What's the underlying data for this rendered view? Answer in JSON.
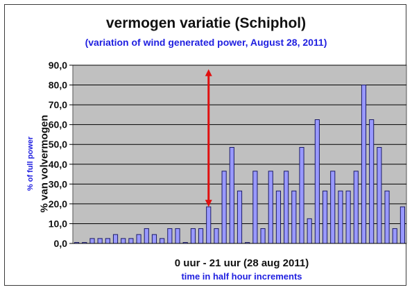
{
  "chart_data": {
    "type": "bar",
    "title": "vermogen variatie (Schiphol)",
    "subtitle": "(variation of wind generated power, August 28, 2011)",
    "ylabel": "% van volvermogen",
    "ylabel_secondary": "% of full power",
    "xlabel": "0 uur - 21 uur (28 aug 2011)",
    "xlabel_secondary": "time in half hour increments",
    "ylim": [
      0,
      90
    ],
    "yticks": [
      "0,0",
      "10,0",
      "20,0",
      "30,0",
      "40,0",
      "50,0",
      "60,0",
      "70,0",
      "80,0",
      "90,0"
    ],
    "grid": true,
    "legend": "none",
    "values": [
      0.5,
      0.5,
      2.5,
      2.5,
      2.5,
      4.5,
      2.5,
      2.5,
      4.5,
      7.5,
      4.5,
      2.5,
      7.5,
      7.5,
      0.5,
      7.5,
      7.5,
      18.5,
      7.5,
      36.5,
      48.5,
      26.5,
      0.5,
      36.5,
      7.5,
      36.5,
      26.5,
      36.5,
      26.5,
      48.5,
      12.5,
      62.5,
      26.5,
      36.5,
      26.5,
      26.5,
      36.5,
      80,
      62.5,
      48.5,
      26.5,
      7.5,
      18.5
    ],
    "annotation": {
      "type": "double-arrow",
      "at_index": 17,
      "from": 18.5,
      "to": 88
    }
  },
  "colors": {
    "plot_background": "#c0c0c0",
    "bar_fill": "#9999ff",
    "bar_stroke": "#1a1a66",
    "gridline": "#000000",
    "arrow": "#e01010",
    "subtitle_text": "#2020e0"
  }
}
